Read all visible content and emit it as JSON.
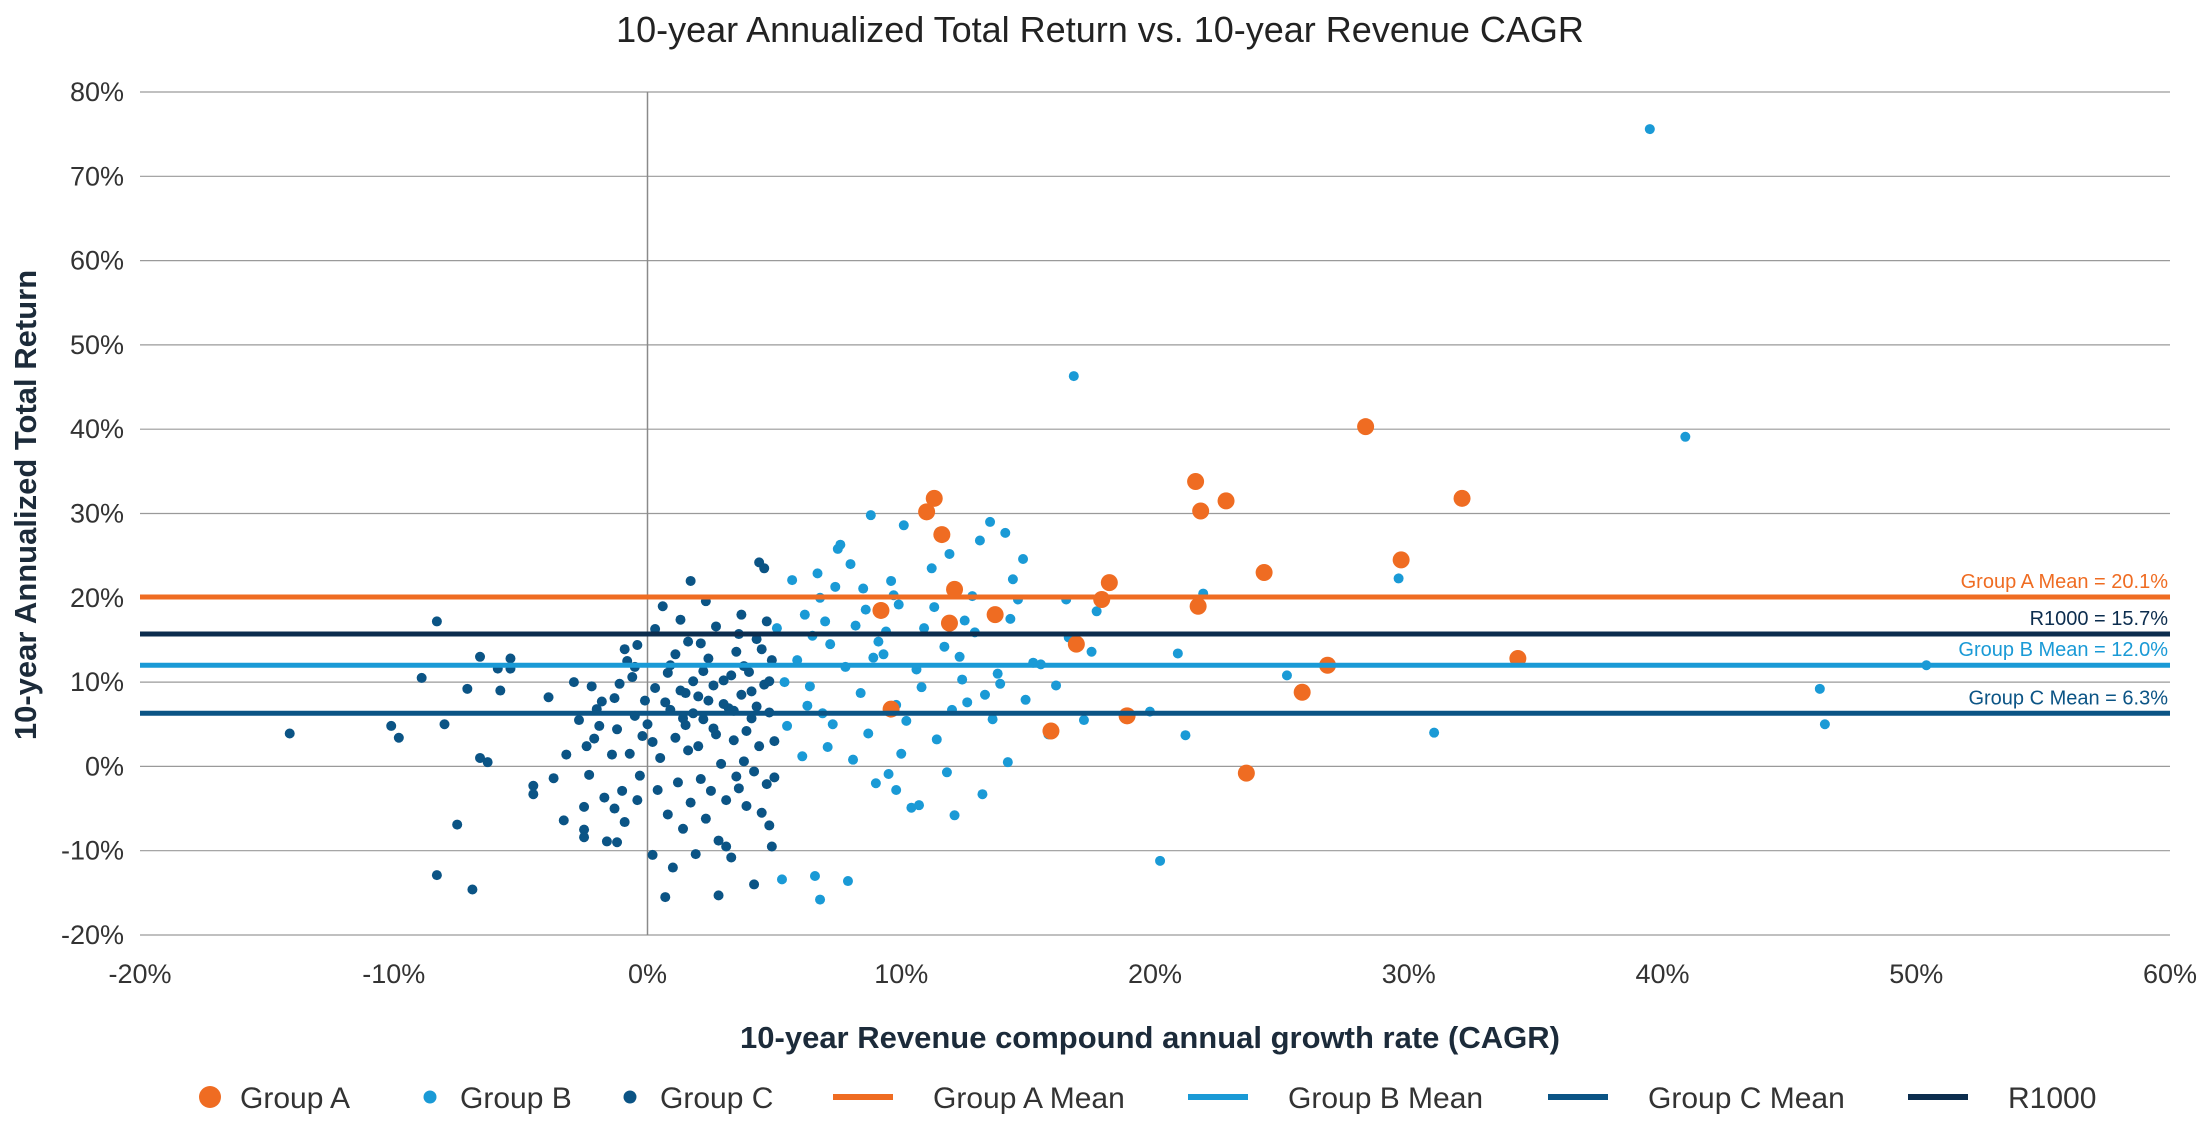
{
  "chart_data": {
    "type": "scatter",
    "title": "10-year Annualized Total Return vs. 10-year Revenue CAGR",
    "xlabel": "10-year Revenue compound annual growth rate (CAGR)",
    "ylabel": "10-year Annualized Total Return",
    "xlim": [
      -20,
      60
    ],
    "ylim": [
      -20,
      80
    ],
    "x_ticks": [
      "-20%",
      "-10%",
      "0%",
      "10%",
      "20%",
      "30%",
      "40%",
      "50%",
      "60%"
    ],
    "y_ticks": [
      "-20%",
      "-10%",
      "0%",
      "10%",
      "20%",
      "30%",
      "40%",
      "50%",
      "60%",
      "70%",
      "80%"
    ],
    "grid": "horizontal",
    "legend_position": "bottom",
    "colors": {
      "group_a": "#ef6c22",
      "group_b": "#1a9ad6",
      "group_c": "#0b5485",
      "r1000": "#0c2d4e"
    },
    "series": [
      {
        "name": "Group A",
        "color": "#ef6c22",
        "points": [
          [
            9.2,
            18.5
          ],
          [
            9.6,
            6.8
          ],
          [
            11,
            30.2
          ],
          [
            11.3,
            31.8
          ],
          [
            11.6,
            27.5
          ],
          [
            11.9,
            17
          ],
          [
            12.1,
            21
          ],
          [
            13.7,
            18
          ],
          [
            15.9,
            4.2
          ],
          [
            16.9,
            14.5
          ],
          [
            17.9,
            19.8
          ],
          [
            18.2,
            21.8
          ],
          [
            18.9,
            6
          ],
          [
            21.6,
            33.8
          ],
          [
            21.7,
            19
          ],
          [
            21.8,
            30.3
          ],
          [
            22.8,
            31.5
          ],
          [
            23.6,
            -0.8
          ],
          [
            24.3,
            23
          ],
          [
            25.8,
            8.8
          ],
          [
            26.8,
            12
          ],
          [
            28.3,
            40.3
          ],
          [
            29.7,
            24.5
          ],
          [
            32.1,
            31.8
          ],
          [
            34.3,
            12.8
          ]
        ]
      },
      {
        "name": "Group B",
        "color": "#1a9ad6",
        "points": [
          [
            16.8,
            46.3
          ],
          [
            39.5,
            75.6
          ],
          [
            40.9,
            39.1
          ],
          [
            46.2,
            9.2
          ],
          [
            46.4,
            5
          ],
          [
            50.4,
            12
          ],
          [
            31,
            4
          ],
          [
            29.6,
            22.3
          ],
          [
            28.3,
            40.2
          ],
          [
            25.2,
            10.8
          ],
          [
            21.9,
            20.5
          ],
          [
            21.2,
            3.7
          ],
          [
            20.9,
            13.4
          ],
          [
            20.2,
            -11.2
          ],
          [
            19.8,
            6.5
          ],
          [
            17.5,
            13.6
          ],
          [
            17.2,
            5.5
          ],
          [
            16.5,
            19.8
          ],
          [
            15.8,
            3.8
          ],
          [
            15.2,
            12.3
          ],
          [
            14.6,
            19.8
          ],
          [
            14.4,
            22.2
          ],
          [
            14.2,
            0.5
          ],
          [
            14.1,
            27.7
          ],
          [
            13.8,
            11
          ],
          [
            13.5,
            29
          ],
          [
            13.2,
            -3.3
          ],
          [
            12.5,
            17.3
          ],
          [
            12.1,
            -5.8
          ],
          [
            11.8,
            -0.7
          ],
          [
            11.5,
            27.8
          ],
          [
            11.1,
            30
          ],
          [
            10.7,
            -4.6
          ],
          [
            10.4,
            -4.9
          ],
          [
            9.8,
            -2.8
          ],
          [
            9.5,
            -0.9
          ],
          [
            9,
            -2
          ],
          [
            8.8,
            29.8
          ],
          [
            7.9,
            -13.6
          ],
          [
            7.5,
            25.8
          ],
          [
            6.6,
            -13
          ],
          [
            6.8,
            -15.8
          ],
          [
            5.3,
            -13.4
          ],
          [
            7.6,
            26.3
          ],
          [
            12.3,
            13
          ],
          [
            10.6,
            11.5
          ],
          [
            9.1,
            14.8
          ],
          [
            8.2,
            16.7
          ],
          [
            6.2,
            18
          ],
          [
            5.7,
            22.1
          ],
          [
            6.7,
            22.9
          ],
          [
            7.4,
            21.3
          ],
          [
            8.5,
            21.1
          ],
          [
            9.9,
            19.2
          ],
          [
            11.2,
            23.5
          ],
          [
            12.9,
            15.9
          ],
          [
            13.9,
            9.8
          ],
          [
            14.9,
            7.9
          ],
          [
            16.1,
            9.6
          ],
          [
            12.6,
            7.6
          ],
          [
            10.2,
            5.4
          ],
          [
            8.7,
            3.9
          ],
          [
            7.1,
            2.3
          ],
          [
            6.1,
            1.2
          ],
          [
            5.5,
            4.8
          ],
          [
            6.4,
            9.5
          ],
          [
            7.8,
            11.8
          ],
          [
            9.3,
            13.3
          ],
          [
            10.9,
            16.4
          ],
          [
            11.7,
            14.2
          ],
          [
            12.4,
            10.3
          ],
          [
            13.3,
            8.5
          ],
          [
            11.4,
            3.2
          ],
          [
            10,
            1.5
          ],
          [
            8.1,
            0.8
          ],
          [
            6.9,
            6.3
          ],
          [
            7.2,
            14.5
          ],
          [
            8.6,
            18.6
          ],
          [
            9.7,
            20.3
          ],
          [
            11.9,
            25.2
          ],
          [
            13.1,
            26.8
          ],
          [
            14.8,
            24.6
          ],
          [
            10.1,
            28.6
          ],
          [
            9.4,
            16
          ],
          [
            8.4,
            8.7
          ],
          [
            6.3,
            7.2
          ],
          [
            5.9,
            12.6
          ],
          [
            7,
            17.2
          ],
          [
            8.9,
            12.9
          ],
          [
            10.8,
            9.4
          ],
          [
            12,
            6.7
          ],
          [
            13.6,
            5.6
          ],
          [
            15.5,
            12.1
          ],
          [
            16.6,
            15.3
          ],
          [
            17.7,
            18.4
          ],
          [
            9.6,
            22
          ],
          [
            8,
            24
          ],
          [
            12.8,
            20.2
          ],
          [
            14.3,
            17.5
          ],
          [
            6.5,
            15.5
          ],
          [
            5.4,
            10
          ],
          [
            5.1,
            16.4
          ],
          [
            7.3,
            5
          ],
          [
            9.8,
            7.3
          ],
          [
            11.3,
            18.9
          ],
          [
            6.8,
            20
          ]
        ]
      },
      {
        "name": "Group C",
        "color": "#0b5485",
        "points": [
          [
            -14.1,
            3.9
          ],
          [
            -10.1,
            4.8
          ],
          [
            -9.8,
            3.4
          ],
          [
            -8.9,
            10.5
          ],
          [
            -8.3,
            17.2
          ],
          [
            -8.3,
            -12.9
          ],
          [
            -8,
            5
          ],
          [
            -7.5,
            -6.9
          ],
          [
            -7.1,
            9.2
          ],
          [
            -6.9,
            -14.6
          ],
          [
            -6.6,
            13
          ],
          [
            -6.6,
            1
          ],
          [
            -6.3,
            0.5
          ],
          [
            -5.9,
            11.6
          ],
          [
            -5.8,
            9
          ],
          [
            -5.4,
            12.8
          ],
          [
            -5.4,
            11.6
          ],
          [
            -4.5,
            -2.3
          ],
          [
            -4.5,
            -3.3
          ],
          [
            -3.9,
            8.2
          ],
          [
            -3.7,
            -1.4
          ],
          [
            -3.3,
            -6.4
          ],
          [
            -3.2,
            1.4
          ],
          [
            -2.9,
            10
          ],
          [
            -2.7,
            5.5
          ],
          [
            -2.5,
            -4.8
          ],
          [
            -2.5,
            -7.5
          ],
          [
            -2.5,
            -8.4
          ],
          [
            -2.4,
            2.4
          ],
          [
            -2.3,
            -1
          ],
          [
            -2.1,
            3.3
          ],
          [
            -2,
            6.8
          ],
          [
            -1.9,
            4.8
          ],
          [
            -1.7,
            -3.7
          ],
          [
            -1.6,
            -8.9
          ],
          [
            -1.4,
            1.4
          ],
          [
            -1.3,
            -5
          ],
          [
            -1.2,
            -9
          ],
          [
            -1.2,
            4.4
          ],
          [
            -1.1,
            9.8
          ],
          [
            -1,
            -2.9
          ],
          [
            -0.9,
            -6.6
          ],
          [
            -0.7,
            1.5
          ],
          [
            -0.6,
            10.6
          ],
          [
            -0.5,
            6
          ],
          [
            -0.4,
            -4
          ],
          [
            -0.3,
            -1.1
          ],
          [
            -0.2,
            3.6
          ],
          [
            -0.1,
            7.8
          ],
          [
            0,
            5
          ],
          [
            0.2,
            -10.5
          ],
          [
            0.3,
            16.3
          ],
          [
            0.4,
            -2.8
          ],
          [
            0.5,
            1
          ],
          [
            0.7,
            7.6
          ],
          [
            0.8,
            -5.7
          ],
          [
            0.9,
            12
          ],
          [
            1,
            -12
          ],
          [
            1.1,
            3.4
          ],
          [
            1.2,
            -1.9
          ],
          [
            1.3,
            9
          ],
          [
            1.4,
            -7.4
          ],
          [
            1.5,
            4.9
          ],
          [
            1.6,
            14.8
          ],
          [
            1.7,
            -4.3
          ],
          [
            1.8,
            6.3
          ],
          [
            1.9,
            -10.4
          ],
          [
            2,
            2.4
          ],
          [
            2.1,
            -1.5
          ],
          [
            2.2,
            11.3
          ],
          [
            2.3,
            -6.2
          ],
          [
            2.4,
            7.8
          ],
          [
            2.5,
            -2.9
          ],
          [
            2.6,
            4.5
          ],
          [
            2.7,
            16.6
          ],
          [
            2.8,
            -8.8
          ],
          [
            2.9,
            0.3
          ],
          [
            3,
            10.2
          ],
          [
            3.1,
            -4
          ],
          [
            3.2,
            6.9
          ],
          [
            3.3,
            -10.8
          ],
          [
            3.4,
            3.1
          ],
          [
            3.5,
            13.6
          ],
          [
            3.6,
            -2.6
          ],
          [
            3.7,
            8.5
          ],
          [
            3.8,
            0.6
          ],
          [
            3.9,
            -4.7
          ],
          [
            4,
            11.2
          ],
          [
            4.1,
            5.7
          ],
          [
            4.2,
            -0.6
          ],
          [
            4.3,
            15.1
          ],
          [
            4.4,
            2.4
          ],
          [
            4.5,
            -5.5
          ],
          [
            4.6,
            9.7
          ],
          [
            4.7,
            -2.1
          ],
          [
            4.8,
            6.4
          ],
          [
            4.9,
            12.6
          ],
          [
            5,
            3
          ],
          [
            -0.4,
            14.4
          ],
          [
            -0.8,
            12.5
          ],
          [
            -1.3,
            8.1
          ],
          [
            0.6,
            19
          ],
          [
            1.7,
            22
          ],
          [
            2.3,
            19.6
          ],
          [
            3.7,
            18
          ],
          [
            4.4,
            24.2
          ],
          [
            4.6,
            23.5
          ],
          [
            2.8,
            -15.3
          ],
          [
            0.7,
            -15.5
          ],
          [
            3.1,
            -9.5
          ],
          [
            4.2,
            -14
          ],
          [
            4.8,
            -7
          ],
          [
            4.9,
            -9.5
          ],
          [
            5,
            -1.3
          ],
          [
            3.5,
            -1.2
          ],
          [
            1.1,
            13.3
          ],
          [
            1.8,
            10.1
          ],
          [
            2.6,
            9.6
          ],
          [
            3.3,
            10.8
          ],
          [
            4.1,
            8.9
          ],
          [
            4.8,
            10.1
          ],
          [
            0.3,
            9.3
          ],
          [
            -0.5,
            11.8
          ],
          [
            1.4,
            5.7
          ],
          [
            2,
            8.3
          ],
          [
            2.4,
            12.8
          ],
          [
            3.4,
            6.6
          ],
          [
            4.5,
            13.9
          ],
          [
            0.9,
            6.7
          ],
          [
            -1.8,
            7.7
          ],
          [
            -2.2,
            9.5
          ],
          [
            1.6,
            1.9
          ],
          [
            2.7,
            3.8
          ],
          [
            3.9,
            4.2
          ],
          [
            0.2,
            2.9
          ],
          [
            -0.9,
            13.9
          ],
          [
            1.3,
            17.4
          ],
          [
            2.1,
            14.6
          ],
          [
            3.6,
            15.7
          ],
          [
            4.7,
            17.2
          ],
          [
            3,
            7.4
          ],
          [
            2.2,
            5.6
          ],
          [
            1.5,
            8.7
          ],
          [
            0.8,
            11.1
          ],
          [
            4.3,
            7.1
          ],
          [
            3.8,
            11.9
          ]
        ]
      }
    ],
    "reference_lines": [
      {
        "name": "Group A Mean",
        "label": "Group A Mean = 20.1%",
        "y": 20.1,
        "color": "#ef6c22"
      },
      {
        "name": "R1000",
        "label": "R1000 = 15.7%",
        "y": 15.7,
        "color": "#0c2d4e"
      },
      {
        "name": "Group B Mean",
        "label": "Group B Mean = 12.0%",
        "y": 12.0,
        "color": "#1a9ad6"
      },
      {
        "name": "Group C Mean",
        "label": "Group C Mean = 6.3%",
        "y": 6.3,
        "color": "#0b5485"
      }
    ],
    "legend": [
      {
        "label": "Group A",
        "kind": "marker",
        "color": "#ef6c22"
      },
      {
        "label": "Group B",
        "kind": "marker",
        "color": "#1a9ad6"
      },
      {
        "label": "Group C",
        "kind": "marker",
        "color": "#0b5485"
      },
      {
        "label": "Group A Mean",
        "kind": "line",
        "color": "#ef6c22"
      },
      {
        "label": "Group B Mean",
        "kind": "line",
        "color": "#1a9ad6"
      },
      {
        "label": "Group C Mean",
        "kind": "line",
        "color": "#0b5485"
      },
      {
        "label": "R1000",
        "kind": "line",
        "color": "#0c2d4e"
      }
    ]
  }
}
